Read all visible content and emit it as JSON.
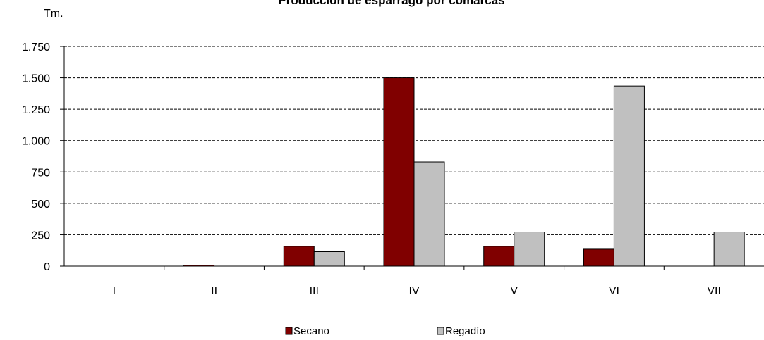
{
  "chart_data": {
    "type": "bar",
    "title": "Producción de esparrago por comarcas",
    "ylabel": "Tm.",
    "xlabel": "",
    "ylim": [
      0,
      1750
    ],
    "yticks": [
      0,
      250,
      500,
      750,
      1000,
      1250,
      1500,
      1750
    ],
    "ytick_labels": [
      "0",
      "250",
      "500",
      "750",
      "1.000",
      "1.250",
      "1.500",
      "1.750"
    ],
    "categories": [
      "I",
      "II",
      "III",
      "IV",
      "V",
      "VI",
      "VII"
    ],
    "series": [
      {
        "name": "Secano",
        "color": "#800000",
        "values": [
          0,
          8,
          158,
          1500,
          158,
          135,
          0
        ]
      },
      {
        "name": "Regadío",
        "color": "#C0C0C0",
        "values": [
          0,
          0,
          115,
          830,
          272,
          1435,
          272
        ]
      }
    ],
    "grid": true,
    "grid_style": "dashed",
    "legend_position": "bottom"
  }
}
